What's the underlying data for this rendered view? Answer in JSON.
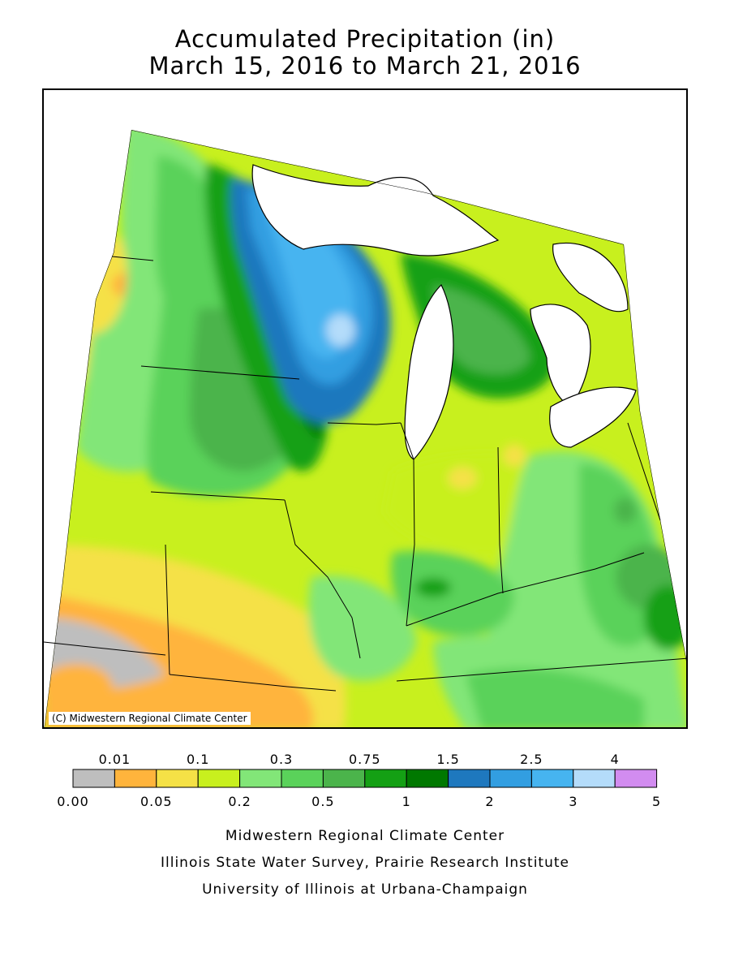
{
  "header": {
    "title_line1": "Accumulated Precipitation (in)",
    "title_line2": "March 15, 2016 to March 21, 2016"
  },
  "map": {
    "credit": "(C) Midwestern Regional Climate Center",
    "colors": {
      "land_bg": "#c8f01e",
      "water": "#ffffff",
      "outline": "#000000"
    }
  },
  "legend": {
    "bins": [
      {
        "color": "#bebebe"
      },
      {
        "color": "#ffb43c"
      },
      {
        "color": "#f5e146"
      },
      {
        "color": "#c8f01e"
      },
      {
        "color": "#82e678"
      },
      {
        "color": "#5ad25a"
      },
      {
        "color": "#4bb44b"
      },
      {
        "color": "#14a014"
      },
      {
        "color": "#007800"
      },
      {
        "color": "#1e78be"
      },
      {
        "color": "#329ee1"
      },
      {
        "color": "#46b4f0"
      },
      {
        "color": "#b4dcfa"
      },
      {
        "color": "#d28cf0"
      }
    ],
    "top_labels": [
      "0.01",
      "0.1",
      "0.3",
      "0.75",
      "1.5",
      "2.5",
      "4"
    ],
    "bottom_labels": [
      "0.00",
      "0.05",
      "0.2",
      "0.5",
      "1",
      "2",
      "3",
      "5"
    ]
  },
  "footer": {
    "line1": "Midwestern Regional Climate Center",
    "line2": "Illinois State Water Survey, Prairie Research Institute",
    "line3": "University of Illinois at Urbana-Champaign"
  }
}
